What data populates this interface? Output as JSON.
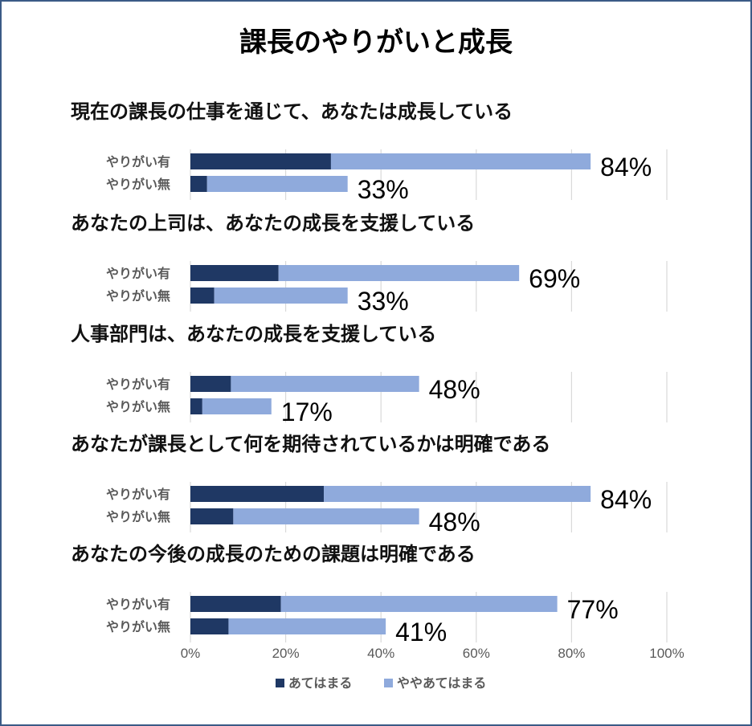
{
  "chart_data": {
    "type": "bar",
    "orientation": "horizontal",
    "stacked": true,
    "title": "課長のやりがいと成長",
    "xlim": [
      0,
      100
    ],
    "x_ticks": [
      "0%",
      "20%",
      "40%",
      "60%",
      "80%",
      "100%"
    ],
    "grid": true,
    "legend_position": "bottom",
    "colors": {
      "series1": "#1f3864",
      "series2": "#8faadc",
      "grid": "#d9d9d9",
      "border": "#3b5a86"
    },
    "series": [
      {
        "name": "あてはまる"
      },
      {
        "name": "ややあてはまる"
      }
    ],
    "panels": [
      {
        "question": "現在の課長の仕事を通じて、あなたは成長している",
        "bars": [
          {
            "category": "やりがい有",
            "values": [
              29.5,
              54.5
            ],
            "total_label": "84%"
          },
          {
            "category": "やりがい無",
            "values": [
              3.5,
              29.5
            ],
            "total_label": "33%"
          }
        ]
      },
      {
        "question": "あなたの上司は、あなたの成長を支援している",
        "bars": [
          {
            "category": "やりがい有",
            "values": [
              18.5,
              50.5
            ],
            "total_label": "69%"
          },
          {
            "category": "やりがい無",
            "values": [
              5,
              28
            ],
            "total_label": "33%"
          }
        ]
      },
      {
        "question": "人事部門は、あなたの成長を支援している",
        "bars": [
          {
            "category": "やりがい有",
            "values": [
              8.5,
              39.5
            ],
            "total_label": "48%"
          },
          {
            "category": "やりがい無",
            "values": [
              2.5,
              14.5
            ],
            "total_label": "17%"
          }
        ]
      },
      {
        "question": "あなたが課長として何を期待されているかは明確である",
        "bars": [
          {
            "category": "やりがい有",
            "values": [
              28,
              56
            ],
            "total_label": "84%"
          },
          {
            "category": "やりがい無",
            "values": [
              9,
              39
            ],
            "total_label": "48%"
          }
        ]
      },
      {
        "question": "あなたの今後の成長のための課題は明確である",
        "bars": [
          {
            "category": "やりがい有",
            "values": [
              19,
              58
            ],
            "total_label": "77%"
          },
          {
            "category": "やりがい無",
            "values": [
              8,
              33
            ],
            "total_label": "41%"
          }
        ]
      }
    ]
  }
}
